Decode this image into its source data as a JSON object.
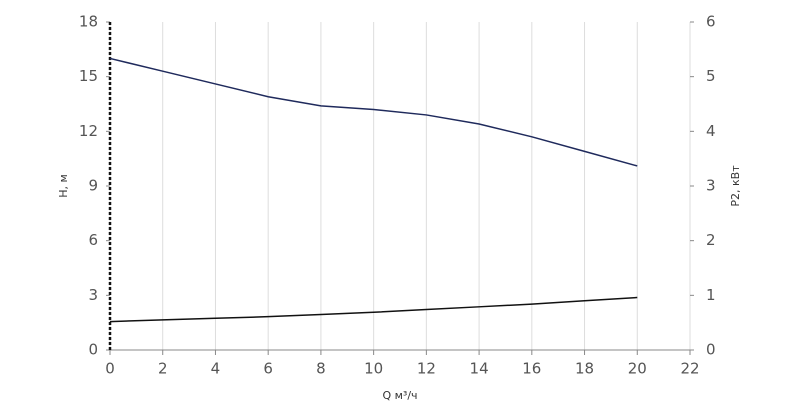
{
  "chart_data": {
    "type": "line",
    "x_label": "Q м³/ч",
    "y_label": "H, м",
    "y2_label": "P2, кВт",
    "x": [
      0,
      2,
      4,
      6,
      8,
      10,
      12,
      14,
      16,
      18,
      20
    ],
    "series": [
      {
        "color": "#1f2a5c",
        "values": [
          16.0,
          15.3,
          14.6,
          13.9,
          13.4,
          13.2,
          12.9,
          12.4,
          11.7,
          10.9,
          10.1
        ]
      },
      {
        "color": "#111111",
        "axis": "y2",
        "values": [
          0.52,
          0.55,
          0.58,
          0.61,
          0.65,
          0.69,
          0.74,
          0.79,
          0.84,
          0.9,
          0.96
        ]
      }
    ],
    "xlim": [
      0,
      22
    ],
    "xticks": [
      0,
      2,
      4,
      6,
      8,
      10,
      12,
      14,
      16,
      18,
      20,
      22
    ],
    "ylim": [
      0,
      18
    ],
    "yticks": [
      0,
      3,
      6,
      9,
      12,
      15,
      18
    ],
    "y2lim": [
      0,
      6
    ],
    "y2ticks": [
      0,
      1,
      2,
      3,
      4,
      5,
      6
    ],
    "grid": true
  }
}
